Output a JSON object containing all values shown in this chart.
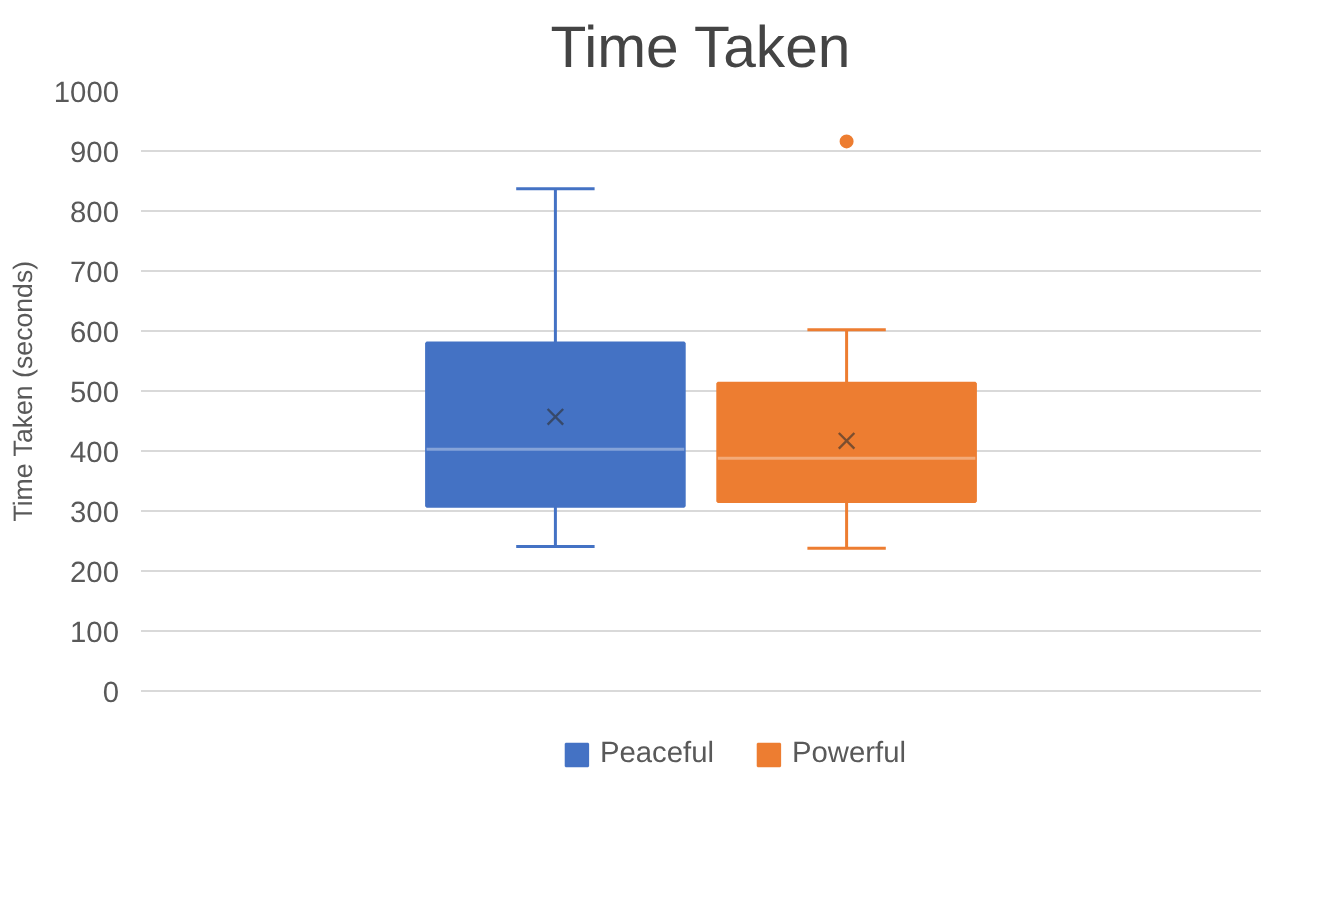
{
  "chart_data": {
    "type": "box",
    "title": "Time Taken",
    "ylabel": "Time Taken (seconds)",
    "categories": [
      null
    ],
    "series": [
      {
        "name": "Peaceful",
        "color": "#4472c4",
        "boxes": [
          {
            "low": 241,
            "q1": 308,
            "median": 403,
            "q3": 580,
            "high": 837,
            "mean": 457
          }
        ]
      },
      {
        "name": "Powerful",
        "color": "#ed7d31",
        "boxes": [
          {
            "low": 238,
            "q1": 316,
            "median": 388,
            "q3": 513,
            "high": 602,
            "mean": 417,
            "outliers": [
              916
            ]
          }
        ]
      }
    ],
    "ylim": [
      0,
      1000
    ],
    "yticks": [
      0,
      100,
      200,
      300,
      400,
      500,
      600,
      700,
      800,
      900,
      1000
    ],
    "grid": "y",
    "legend": "bottom",
    "tick_labels": "y"
  }
}
